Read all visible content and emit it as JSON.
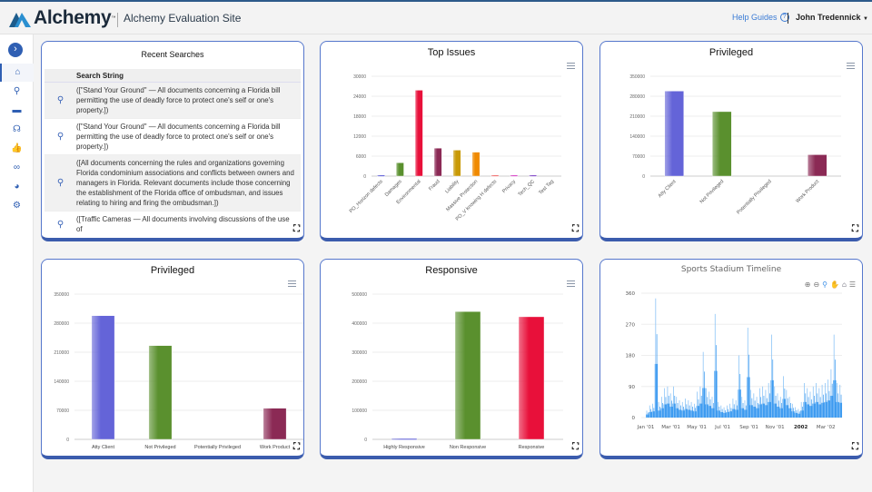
{
  "header": {
    "logo": "Alchemy",
    "logo_tm": "™",
    "site_title": "Alchemy Evaluation Site",
    "help_label": "Help Guides",
    "help_icon": "question-circle-icon",
    "user_name": "John Tredennick"
  },
  "sidebar": {
    "items": [
      {
        "name": "home",
        "glyph": "⌂"
      },
      {
        "name": "search",
        "glyph": "⚲"
      },
      {
        "name": "folder",
        "glyph": "▬"
      },
      {
        "name": "brain",
        "glyph": "☊"
      },
      {
        "name": "thumbs-up",
        "glyph": "👍"
      },
      {
        "name": "link",
        "glyph": "∞"
      },
      {
        "name": "pie-chart",
        "glyph": "◕"
      },
      {
        "name": "settings",
        "glyph": "⚙"
      }
    ]
  },
  "recent_searches": {
    "title": "Recent Searches",
    "column": "Search String",
    "rows": [
      "([\"Stand Your Ground\" — All documents concerning a Florida bill permitting the use of deadly force to protect one's self or one's property.])",
      "([\"Stand Your Ground\" — All documents concerning a Florida bill permitting the use of deadly force to protect one's self or one's property.])",
      "([All documents concerning the rules and organizations governing Florida condominium associations and conflicts between owners and managers in Florida. Relevant documents include those concerning the establishment of the Florida office of ombudsman, and issues relating to hiring and firing the ombudsman.])",
      "([Traffic Cameras — All documents involving discussions of the use of"
    ]
  },
  "chart_data": [
    {
      "id": "top-issues",
      "type": "bar",
      "title": "Top Issues",
      "categories": [
        "PO_Horizon defects",
        "Damages",
        "Environmental",
        "Fraud",
        "Liability",
        "Massive Protection",
        "PO_V knowing H defects",
        "Privacy",
        "Tech_QC",
        "Test Tag"
      ],
      "values": [
        300,
        4000,
        25800,
        8400,
        7800,
        7200,
        300,
        300,
        300,
        0
      ],
      "colors": [
        "#5b5bd6",
        "#5a902e",
        "#e8103a",
        "#8b2a55",
        "#c99a06",
        "#f08a00",
        "#f06a6a",
        "#d63cc4",
        "#7b3fc4",
        "#999999"
      ],
      "ylim": [
        0,
        30000
      ],
      "yticks": [
        "0",
        "6000",
        "12000",
        "18000",
        "24000",
        "30000"
      ],
      "grid": true
    },
    {
      "id": "privileged-1",
      "type": "bar",
      "title": "Privileged",
      "categories": [
        "Atty Client",
        "Not Privileged",
        "Potentially Privileged",
        "Work Product"
      ],
      "values": [
        298000,
        226000,
        0,
        75000
      ],
      "colors": [
        "#6464d8",
        "#5a902e",
        "#999999",
        "#8b2a55"
      ],
      "ylim": [
        0,
        350000
      ],
      "yticks": [
        "0",
        "70000",
        "140000",
        "210000",
        "280000",
        "350000"
      ],
      "grid": true
    },
    {
      "id": "privileged-2",
      "type": "bar",
      "title": "Privileged",
      "categories": [
        "Atty Client",
        "Not Privileged",
        "Potentially Privileged",
        "Work Product"
      ],
      "values": [
        298000,
        226000,
        0,
        75000
      ],
      "colors": [
        "#6464d8",
        "#5a902e",
        "#999999",
        "#8b2a55"
      ],
      "ylim": [
        0,
        350000
      ],
      "yticks": [
        "0",
        "70000",
        "140000",
        "210000",
        "280000",
        "350000"
      ],
      "grid": true
    },
    {
      "id": "responsive",
      "type": "bar",
      "title": "Responsive",
      "categories": [
        "Highly Responsive",
        "Non Responsive",
        "Responsive"
      ],
      "values": [
        3000,
        440000,
        422000
      ],
      "colors": [
        "#6464d8",
        "#5a902e",
        "#e8103a"
      ],
      "ylim": [
        0,
        500000
      ],
      "yticks": [
        "0",
        "100000",
        "200000",
        "300000",
        "400000",
        "500000"
      ],
      "grid": true
    },
    {
      "id": "timeline",
      "type": "area",
      "title": "Sports Stadium Timeline",
      "color": "#3d9bf0",
      "ylim": [
        0,
        360
      ],
      "yticks": [
        "0",
        "90",
        "180",
        "270",
        "360"
      ],
      "xticks": [
        {
          "date": "2001-01-01",
          "label": "Jan '01"
        },
        {
          "date": "2001-03-01",
          "label": "Mar '01"
        },
        {
          "date": "2001-05-01",
          "label": "May '01"
        },
        {
          "date": "2001-07-01",
          "label": "Jul '01"
        },
        {
          "date": "2001-09-01",
          "label": "Sep '01"
        },
        {
          "date": "2001-11-01",
          "label": "Nov '01"
        },
        {
          "date": "2002-01-01",
          "label": "2002"
        },
        {
          "date": "2002-03-01",
          "label": "Mar '02"
        }
      ],
      "xlim": [
        "2001-01-01",
        "2002-04-08"
      ],
      "x": [
        "2001-01-01",
        "2001-01-08",
        "2001-01-15",
        "2001-01-22",
        "2001-01-29",
        "2001-02-05",
        "2001-02-12",
        "2001-02-19",
        "2001-02-26",
        "2001-03-05",
        "2001-03-12",
        "2001-03-19",
        "2001-03-26",
        "2001-04-02",
        "2001-04-09",
        "2001-04-16",
        "2001-04-23",
        "2001-04-30",
        "2001-05-07",
        "2001-05-14",
        "2001-05-21",
        "2001-05-28",
        "2001-06-04",
        "2001-06-11",
        "2001-06-18",
        "2001-06-25",
        "2001-07-02",
        "2001-07-09",
        "2001-07-16",
        "2001-07-23",
        "2001-07-30",
        "2001-08-06",
        "2001-08-13",
        "2001-08-20",
        "2001-08-27",
        "2001-09-03",
        "2001-09-10",
        "2001-09-17",
        "2001-09-24",
        "2001-10-01",
        "2001-10-08",
        "2001-10-15",
        "2001-10-22",
        "2001-10-29",
        "2001-11-05",
        "2001-11-12",
        "2001-11-19",
        "2001-11-26",
        "2001-12-03",
        "2001-12-10",
        "2001-12-17",
        "2001-12-24",
        "2001-12-31",
        "2002-01-07",
        "2002-01-14",
        "2002-01-21",
        "2002-01-28",
        "2002-02-04",
        "2002-02-11",
        "2002-02-18",
        "2002-02-25",
        "2002-03-04",
        "2002-03-11",
        "2002-03-18",
        "2002-03-25",
        "2002-04-01"
      ],
      "y": [
        20,
        35,
        40,
        345,
        45,
        60,
        85,
        90,
        70,
        90,
        60,
        50,
        45,
        55,
        50,
        45,
        40,
        75,
        90,
        190,
        85,
        75,
        60,
        300,
        45,
        35,
        30,
        35,
        40,
        55,
        50,
        180,
        60,
        50,
        260,
        80,
        70,
        60,
        85,
        90,
        80,
        100,
        240,
        90,
        70,
        60,
        120,
        80,
        60,
        40,
        30,
        25,
        45,
        100,
        85,
        75,
        90,
        100,
        85,
        95,
        100,
        110,
        140,
        240,
        100,
        95
      ]
    }
  ]
}
